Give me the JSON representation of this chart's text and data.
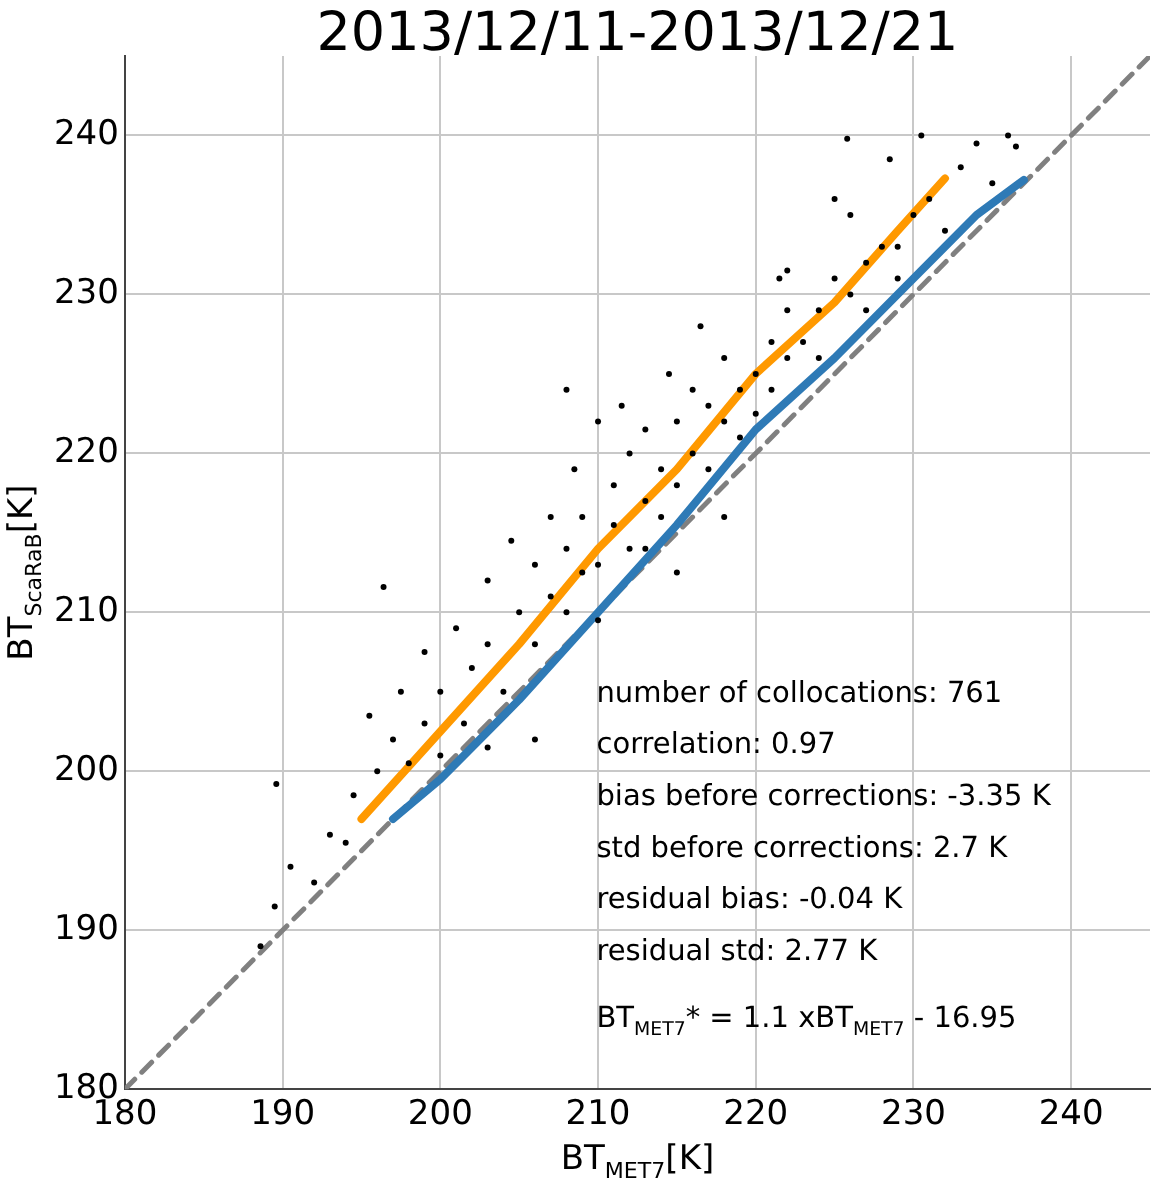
{
  "chart_data": {
    "type": "scatter",
    "title": "2013/12/11-2013/12/21",
    "xlabel": "BT$_{MET7}$[K]",
    "ylabel": "BT$_{ScaRaB}$[K]",
    "xlim": [
      180,
      245
    ],
    "ylim": [
      180,
      245
    ],
    "xticks": [
      180,
      190,
      200,
      210,
      220,
      230,
      240
    ],
    "yticks": [
      180,
      190,
      200,
      210,
      220,
      230,
      240
    ],
    "grid": true,
    "legend": false,
    "series": [
      {
        "color": "#000000",
        "marker": "circle",
        "x": [
          189.6,
          189.5,
          188.6,
          190.5,
          192,
          193,
          194,
          194.5,
          196.4,
          195.5,
          196,
          197,
          198,
          197.5,
          199,
          199,
          200,
          200,
          201,
          201.5,
          202,
          203,
          203,
          204,
          204.5,
          205,
          206,
          206,
          207,
          207,
          208,
          208,
          208.5,
          209,
          209,
          210,
          210,
          211,
          211,
          211.5,
          212,
          212,
          213,
          213,
          214,
          214,
          214.5,
          215,
          215,
          216,
          216,
          216.5,
          217,
          217,
          218,
          218,
          219,
          219,
          220,
          220,
          221,
          221,
          221.5,
          222,
          222,
          223,
          224,
          224,
          225,
          225,
          226,
          227,
          227,
          228,
          228.5,
          229,
          229,
          230,
          230.5,
          231,
          232,
          233,
          234,
          235,
          236,
          236.5,
          206,
          203,
          210,
          215,
          222,
          226,
          218,
          213,
          225.8,
          208
        ],
        "values": [
          199.2,
          191.5,
          189,
          194,
          193,
          196,
          195.5,
          198.5,
          211.6,
          203.5,
          200,
          202,
          200.5,
          205,
          203,
          207.5,
          201,
          205,
          209,
          203,
          206.5,
          212,
          208,
          205,
          214.5,
          210,
          208,
          213,
          216,
          211,
          210,
          214,
          219,
          212.5,
          216,
          213,
          222,
          215.5,
          218,
          223,
          214,
          220,
          217,
          221.5,
          216,
          219,
          225,
          218,
          222,
          220,
          224,
          228,
          219,
          223,
          222,
          226,
          224,
          221,
          225,
          222.5,
          227,
          224,
          231,
          226,
          229,
          227,
          229,
          226,
          231,
          236,
          230,
          232,
          229,
          233,
          238.5,
          233,
          231,
          235,
          240,
          236,
          234,
          238,
          239.5,
          237,
          240,
          239.3,
          202,
          201.5,
          209.5,
          212.5,
          231.5,
          235,
          216,
          214,
          239.8,
          224
        ]
      },
      {
        "type": "line",
        "color": "#ff9900",
        "marker": "none",
        "x": [
          195,
          200,
          205,
          210,
          215,
          220,
          225,
          229,
          232
        ],
        "values": [
          197,
          202.5,
          208,
          214,
          219,
          225,
          229.5,
          234,
          237.3
        ]
      },
      {
        "type": "line",
        "color": "#2e7ab6",
        "marker": "none",
        "x": [
          197,
          200,
          205,
          210,
          215,
          220,
          225,
          230,
          234,
          237
        ],
        "values": [
          197,
          199.5,
          204.5,
          210,
          215.5,
          221.5,
          226,
          231,
          235,
          237.2
        ]
      },
      {
        "type": "line",
        "color": "#808080",
        "marker": "none",
        "line_style": "dashed",
        "x": [
          180,
          245
        ],
        "values": [
          180,
          245
        ]
      }
    ],
    "annotations": [
      "number of collocations: 761",
      "correlation: 0.97",
      "bias before corrections: -3.35 K",
      "std before corrections: 2.7 K",
      "residual bias: -0.04 K",
      "residual std: 2.77 K",
      "BT$_{MET7}$* = 1.1 xBT$_{MET7}$ - 16.95"
    ]
  }
}
